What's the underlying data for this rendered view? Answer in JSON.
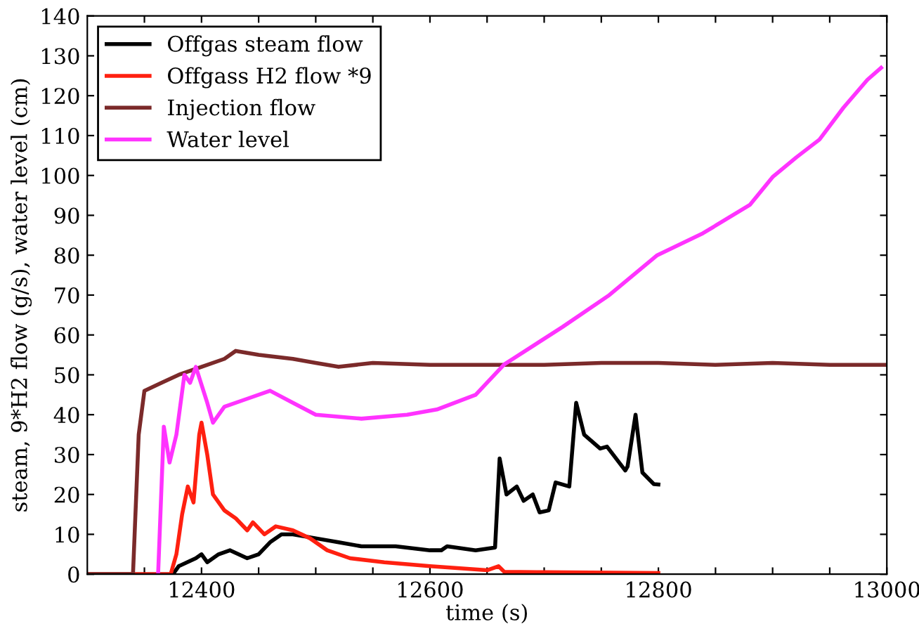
{
  "chart_data": {
    "type": "line",
    "xlabel": "time (s)",
    "ylabel": "steam, 9*H2 flow (g/s), water level (cm)",
    "xlim": [
      12300,
      13000
    ],
    "ylim": [
      0,
      140
    ],
    "xticks": [
      {
        "value": 12350,
        "label": null
      },
      {
        "value": 12400,
        "label": "12400"
      },
      {
        "value": 12450,
        "label": null
      },
      {
        "value": 12500,
        "label": null
      },
      {
        "value": 12550,
        "label": null
      },
      {
        "value": 12600,
        "label": "12600"
      },
      {
        "value": 12650,
        "label": null
      },
      {
        "value": 12700,
        "label": null
      },
      {
        "value": 12750,
        "label": null
      },
      {
        "value": 12800,
        "label": "12800"
      },
      {
        "value": 12850,
        "label": null
      },
      {
        "value": 12900,
        "label": null
      },
      {
        "value": 12950,
        "label": null
      },
      {
        "value": 13000,
        "label": "13000"
      }
    ],
    "yticks": [
      0,
      10,
      20,
      30,
      40,
      50,
      60,
      70,
      80,
      90,
      100,
      110,
      120,
      130,
      140
    ],
    "grid": false,
    "legend": "top left",
    "marker": "none",
    "line_style": "solid",
    "series": [
      {
        "name": "Offgas steam flow",
        "color": "#000000",
        "x": [
          12300,
          12375,
          12380,
          12395,
          12400,
          12405,
          12415,
          12425,
          12440,
          12450,
          12460,
          12470,
          12480,
          12500,
          12520,
          12540,
          12570,
          12600,
          12610,
          12615,
          12640,
          12657,
          12661,
          12667,
          12676,
          12682,
          12690,
          12696,
          12704,
          12710,
          12722,
          12728,
          12735,
          12749,
          12755,
          12771,
          12773,
          12780,
          12786,
          12796,
          12800
        ],
        "values": [
          0,
          0,
          2,
          4,
          5,
          3,
          5,
          6,
          4,
          5,
          8,
          10,
          10,
          9,
          8,
          7,
          7,
          6,
          6,
          7,
          6,
          6.7,
          29,
          20,
          22,
          18.4,
          20,
          15.5,
          16,
          23,
          22,
          43,
          35,
          31.5,
          32,
          26,
          27,
          40,
          25.5,
          22.6,
          22.5
        ]
      },
      {
        "name": "Offgass H2 flow *9",
        "color": "#ff2010",
        "x": [
          12300,
          12373,
          12378,
          12383,
          12388,
          12393,
          12398,
          12400,
          12405,
          12410,
          12420,
          12430,
          12440,
          12445,
          12455,
          12465,
          12480,
          12495,
          12510,
          12530,
          12560,
          12600,
          12650,
          12660,
          12665,
          12700,
          12800
        ],
        "values": [
          0,
          0,
          5,
          15,
          22,
          18,
          35,
          38,
          30,
          20,
          16,
          14,
          11,
          13,
          10,
          12,
          11,
          9,
          6,
          4,
          3,
          2,
          1,
          2,
          0.6,
          0.5,
          0.3
        ]
      },
      {
        "name": "Injection flow",
        "color": "#7b2a2a",
        "x": [
          12300,
          12340,
          12345,
          12350,
          12365,
          12380,
          12400,
          12420,
          12430,
          12450,
          12480,
          12500,
          12520,
          12550,
          12600,
          12650,
          12700,
          12750,
          12800,
          12850,
          12900,
          12950,
          13000
        ],
        "values": [
          0,
          0,
          35,
          46,
          48,
          50,
          52,
          54,
          56,
          55,
          54,
          53,
          52,
          53,
          52.5,
          52.5,
          52.5,
          53,
          53,
          52.5,
          53,
          52.5,
          52.5
        ]
      },
      {
        "name": "Water level",
        "color": "#ff33ff",
        "x": [
          12362,
          12367,
          12372,
          12378,
          12385,
          12390,
          12395,
          12405,
          12410,
          12420,
          12440,
          12460,
          12480,
          12500,
          12540,
          12580,
          12606,
          12640,
          12665,
          12716,
          12757,
          12799,
          12839,
          12880,
          12900,
          12921,
          12941,
          12962,
          12983,
          12995
        ],
        "values": [
          0,
          37,
          28,
          35,
          50,
          48,
          52,
          43,
          38,
          42,
          44,
          46,
          43,
          40,
          39,
          40,
          41.3,
          45,
          52.6,
          62,
          70,
          80,
          85.5,
          92.6,
          99.6,
          104.6,
          109,
          117,
          124,
          127
        ]
      }
    ]
  }
}
